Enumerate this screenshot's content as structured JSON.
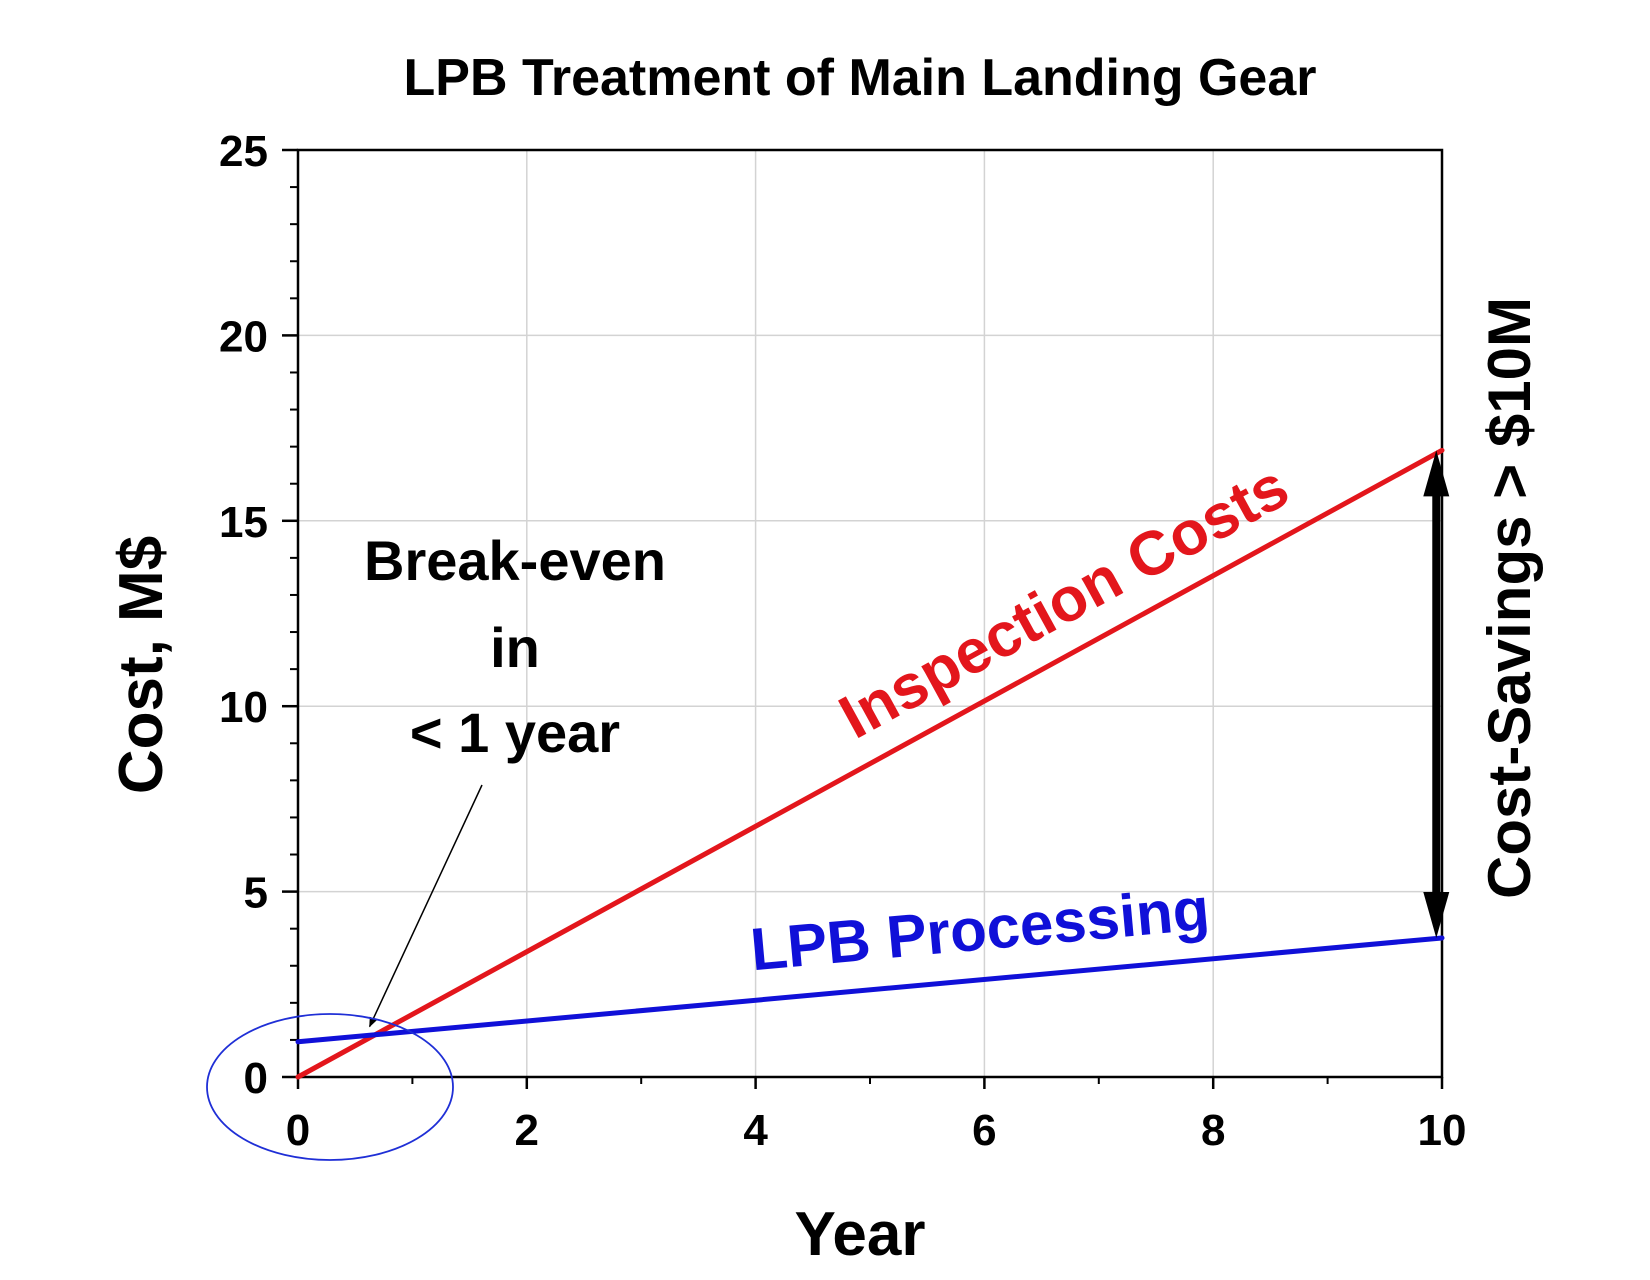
{
  "chart_data": {
    "type": "line",
    "title": "LPB Treatment of Main Landing Gear",
    "xlabel": "Year",
    "ylabel": "Cost, M$",
    "xlim": [
      0,
      10
    ],
    "ylim": [
      0,
      25
    ],
    "x_ticks": [
      "0",
      "2",
      "4",
      "6",
      "8",
      "10"
    ],
    "y_ticks": [
      "0",
      "5",
      "10",
      "15",
      "20",
      "25"
    ],
    "x_tick_values": [
      0,
      2,
      4,
      6,
      8,
      10
    ],
    "y_tick_values": [
      0,
      5,
      10,
      15,
      20,
      25
    ],
    "x_minor_values": [
      1,
      3,
      5,
      7,
      9
    ],
    "y_minor_values": [
      1,
      2,
      3,
      4,
      6,
      7,
      8,
      9,
      11,
      12,
      13,
      14,
      16,
      17,
      18,
      19,
      21,
      22,
      23,
      24
    ],
    "grid": true,
    "series": [
      {
        "name": "Inspection Costs",
        "x": [
          0,
          10
        ],
        "values": [
          0,
          16.9
        ],
        "color": "#e3161c"
      },
      {
        "name": "LPB Processing",
        "x": [
          0,
          10
        ],
        "values": [
          0.95,
          3.75
        ],
        "color": "#1010d8"
      }
    ],
    "annotations": {
      "break_even": [
        "Break-even",
        "in",
        "< 1 year"
      ],
      "savings": "Cost-Savings > $10M",
      "break_even_point": {
        "x": 0.6,
        "y": 1.2
      },
      "savings_arrow": {
        "x": 9.95,
        "y_from": 3.75,
        "y_to": 16.9
      }
    },
    "colors": {
      "axis": "#000000",
      "grid": "#d3d3d3",
      "ellipse": "#1f2fd6"
    }
  }
}
